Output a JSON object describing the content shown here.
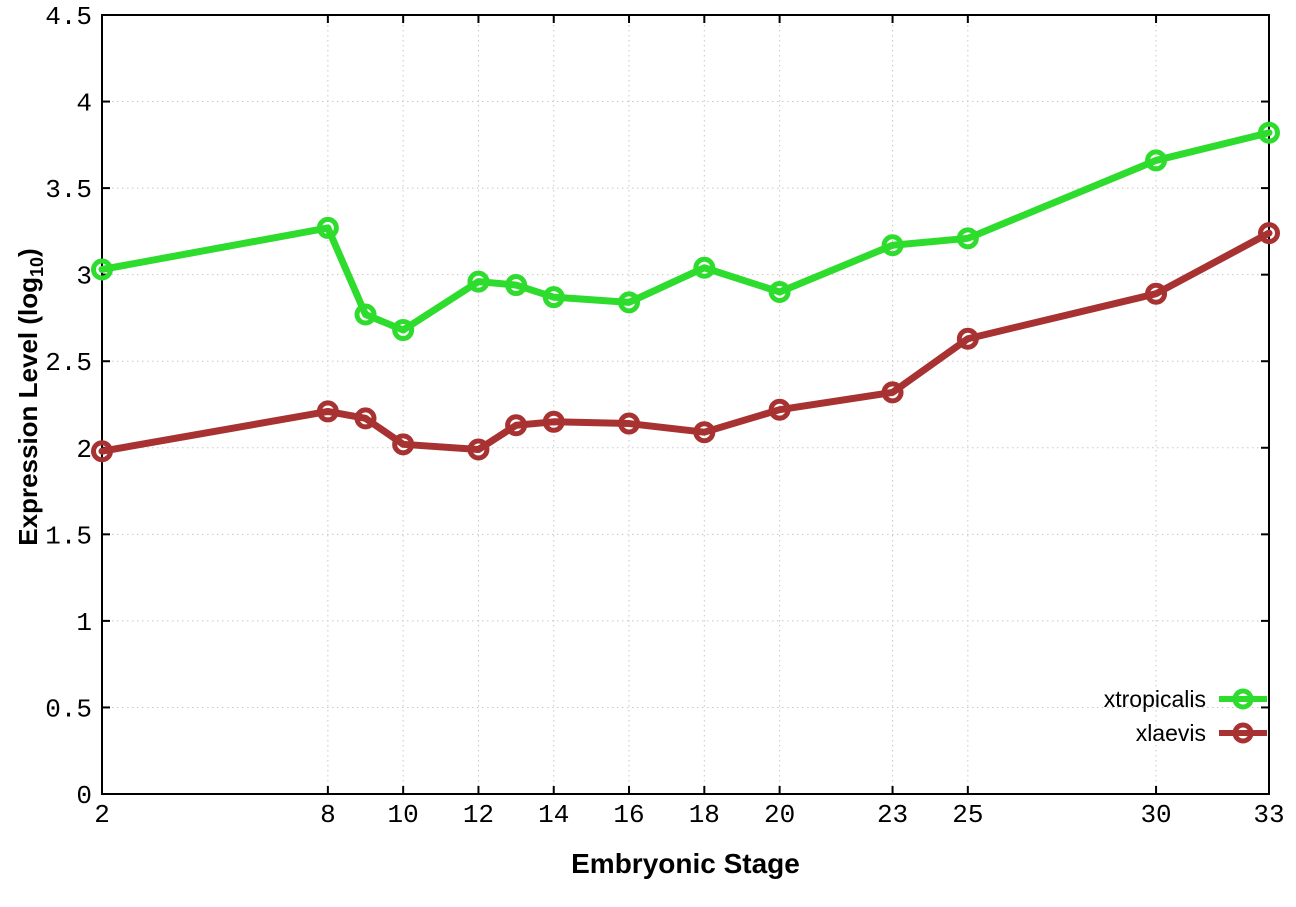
{
  "chart_data": {
    "type": "line",
    "x": [
      2,
      8,
      9,
      10,
      12,
      13,
      14,
      16,
      18,
      20,
      23,
      25,
      30,
      33
    ],
    "series": [
      {
        "name": "xtropicalis",
        "color": "#2edc2e",
        "values": [
          3.03,
          3.27,
          2.77,
          2.68,
          2.96,
          2.94,
          2.87,
          2.84,
          3.04,
          2.9,
          3.17,
          3.21,
          3.66,
          3.82
        ]
      },
      {
        "name": "xlaevis",
        "color": "#a83232",
        "values": [
          1.98,
          2.21,
          2.17,
          2.02,
          1.99,
          2.13,
          2.15,
          2.14,
          2.09,
          2.22,
          2.32,
          2.63,
          2.89,
          3.24
        ]
      }
    ],
    "xlabel": "Embryonic Stage",
    "ylabel_prefix": "Expression Level (log",
    "ylabel_sub": "10",
    "ylabel_suffix": ")",
    "xlim": [
      2,
      33
    ],
    "ylim": [
      0,
      4.5
    ],
    "xticks": [
      2,
      8,
      10,
      12,
      14,
      16,
      18,
      20,
      23,
      25,
      30,
      33
    ],
    "yticks": [
      0,
      0.5,
      1,
      1.5,
      2,
      2.5,
      3,
      3.5,
      4,
      4.5
    ],
    "ytick_labels": [
      "0",
      "0.5",
      "1",
      "1.5",
      "2",
      "2.5",
      "3",
      "3.5",
      "4",
      "4.5"
    ],
    "grid": true,
    "legend_position": "bottom-right",
    "axis_color": "#000000",
    "grid_color": "#c8c8c8",
    "tick_label_color": "#000000",
    "background": "#ffffff"
  }
}
